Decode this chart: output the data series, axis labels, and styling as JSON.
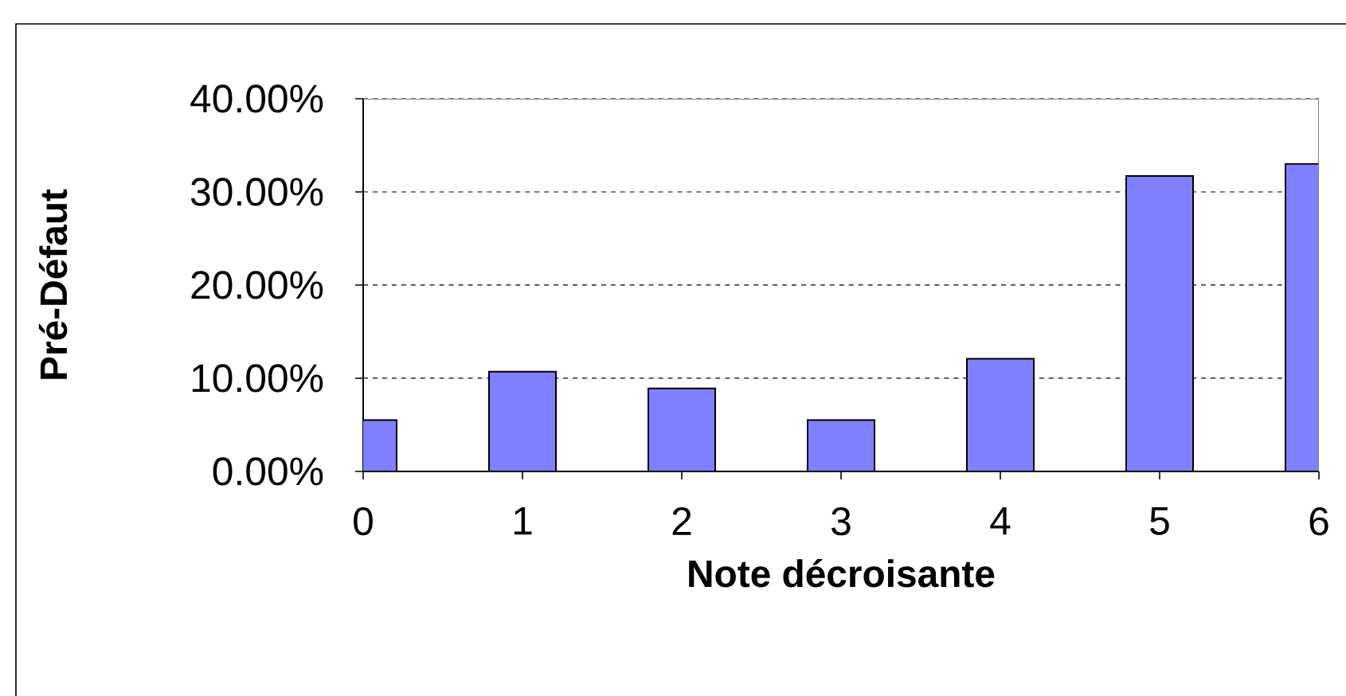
{
  "chart_data": {
    "type": "bar",
    "xlabel": "Note décroisante",
    "ylabel": "Pré-Défaut",
    "x": [
      0,
      1,
      2,
      3,
      4,
      5,
      6
    ],
    "values": [
      5.5,
      10.7,
      8.9,
      5.5,
      12.1,
      31.7,
      33.0
    ],
    "color": "#8080ff",
    "xlim": [
      0,
      6
    ],
    "xticks": [
      0,
      1,
      2,
      3,
      4,
      5,
      6
    ],
    "ylim": [
      0,
      40
    ],
    "yticks": [
      {
        "value": 0,
        "label": "0.00%"
      },
      {
        "value": 10,
        "label": "10.00%"
      },
      {
        "value": 20,
        "label": "20.00%"
      },
      {
        "value": 30,
        "label": "30.00%"
      },
      {
        "value": 40,
        "label": "40.00%"
      }
    ],
    "grid": "y"
  }
}
